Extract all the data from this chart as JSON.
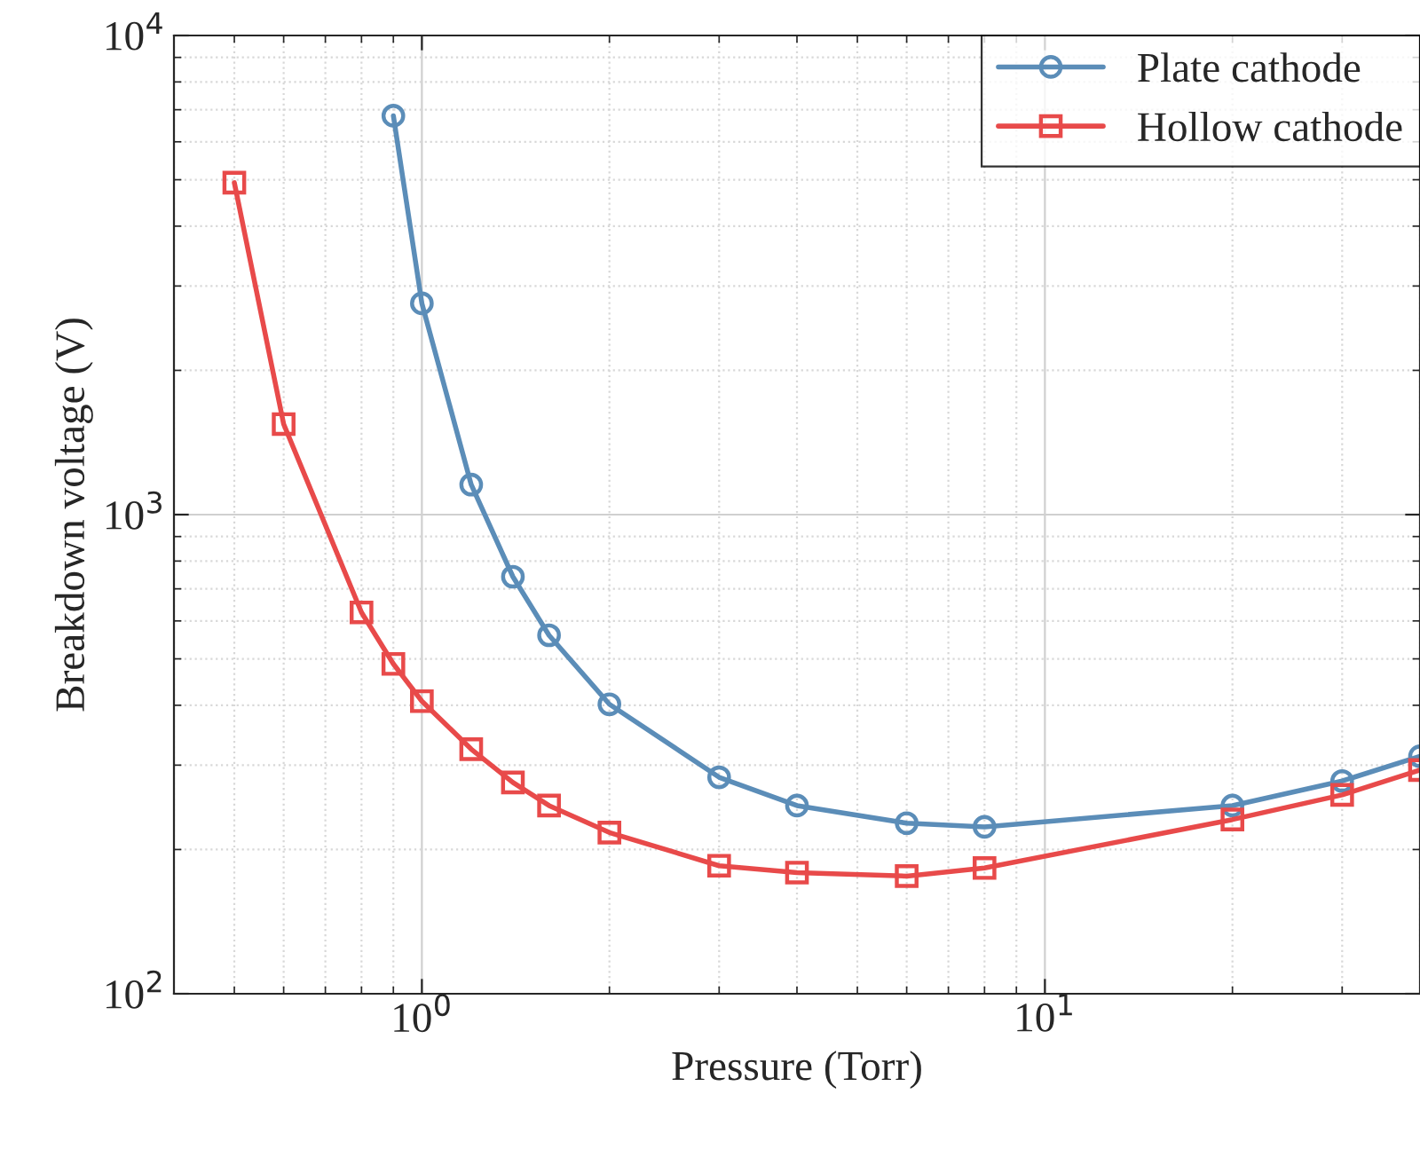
{
  "chart_data": {
    "type": "line",
    "xlabel": "Pressure (Torr)",
    "ylabel": "Breakdown voltage (V)",
    "log": "xy",
    "grid": true,
    "legend": "top right",
    "line_style": "solid",
    "xlim": [
      0.4,
      40
    ],
    "xticks": [
      {
        "value": 1,
        "label": "10$^{0}$"
      },
      {
        "value": 10,
        "label": "10$^{1}$"
      }
    ],
    "ylim": [
      100,
      10000
    ],
    "yticks": [
      {
        "value": 100,
        "label": "10$^{2}$"
      },
      {
        "value": 1000,
        "label": "10$^{3}$"
      },
      {
        "value": 10000,
        "label": "10$^{4}$"
      }
    ],
    "series": [
      {
        "name": "Plate cathode",
        "color": "#5b8db8",
        "marker": "circle",
        "x": [
          0.9,
          1,
          1.2,
          1.4,
          1.6,
          2,
          3,
          4,
          6,
          8,
          20,
          30,
          40
        ],
        "values": [
          6800,
          2760,
          1155,
          742,
          560,
          402,
          283,
          247,
          227,
          223,
          247,
          278,
          313
        ]
      },
      {
        "name": "Hollow cathode",
        "color": "#e84a4a",
        "marker": "square",
        "x": [
          0.5,
          0.6,
          0.8,
          0.9,
          1,
          1.2,
          1.4,
          1.6,
          2,
          3,
          4,
          6,
          8,
          20,
          30,
          40
        ],
        "values": [
          4930,
          1545,
          625,
          488,
          408,
          324,
          276,
          247,
          217,
          185,
          179,
          176,
          183,
          231,
          260,
          293
        ]
      }
    ]
  }
}
